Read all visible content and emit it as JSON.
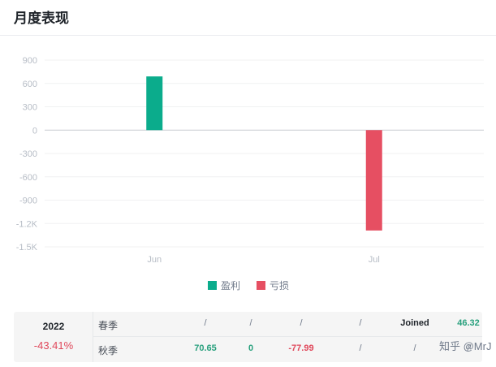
{
  "header": {
    "title": "月度表现"
  },
  "chart_data": {
    "type": "bar",
    "categories": [
      "Jun",
      "Jul"
    ],
    "series": [
      {
        "name": "盈利",
        "values": [
          690,
          null
        ],
        "color": "#0bac8c"
      },
      {
        "name": "亏损",
        "values": [
          null,
          -1290
        ],
        "color": "#e64f62"
      }
    ],
    "y_ticks": [
      "900",
      "600",
      "300",
      "0",
      "-300",
      "-600",
      "-900",
      "-1.2K",
      "-1.5K"
    ],
    "ylim": [
      -1500,
      900
    ],
    "title": "",
    "xlabel": "",
    "ylabel": "",
    "grid": true,
    "legend_position": "bottom-center"
  },
  "summary": {
    "year": "2022",
    "year_pct": "-43.41%",
    "rows": [
      {
        "season": "春季",
        "cells": [
          "/",
          "/",
          "/",
          "/",
          "Joined",
          "46.32"
        ],
        "kinds": [
          "slash",
          "slash",
          "slash",
          "slash",
          "bold",
          "pos"
        ]
      },
      {
        "season": "秋季",
        "cells": [
          "70.65",
          "0",
          "-77.99",
          "/",
          "/",
          "/"
        ],
        "kinds": [
          "pos",
          "neutral",
          "neg",
          "slash",
          "slash",
          "slash"
        ]
      }
    ]
  },
  "watermark": "知乎 @MrJ"
}
